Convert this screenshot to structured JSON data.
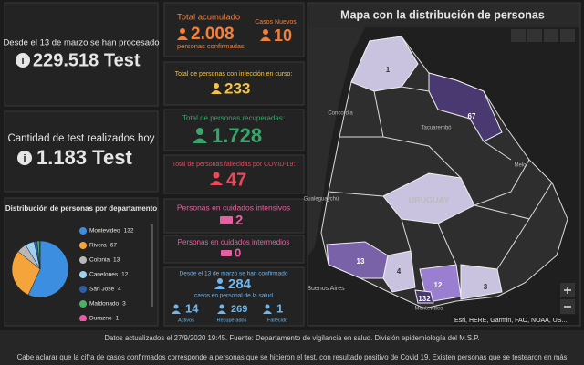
{
  "panels": {
    "processed": {
      "caption": "Desde el 13 de marzo se han procesado",
      "value": "229.518 Test"
    },
    "today": {
      "caption": "Cantidad de test realizados hoy",
      "value": "1.183 Test"
    }
  },
  "pie": {
    "type": "pie",
    "title": "Distribución de personas por departamento",
    "categories": [
      "Montevideo",
      "Rivera",
      "Colonia",
      "Canelones",
      "San José",
      "Maldonado",
      "Durazno"
    ],
    "values": [
      132,
      67,
      13,
      12,
      4,
      3,
      1
    ],
    "colors": [
      "#3b8ee0",
      "#f5a43c",
      "#b8b8b8",
      "#9fd0f0",
      "#2c5fa8",
      "#4caf6a",
      "#e85aa6"
    ]
  },
  "stats": {
    "total": {
      "label": "Total acumulado",
      "value": "2.008",
      "unit": "personas confirmadas"
    },
    "new_cases": {
      "label": "Casos Nuevos",
      "value": "10"
    },
    "active": {
      "label": "Total de personas con infección en curso:",
      "value": "233"
    },
    "recovered": {
      "label": "Total de personas recuperadas:",
      "value": "1.728"
    },
    "deceased": {
      "label": "Total de personas fallecidas por COVID-19:",
      "value": "47"
    },
    "icu": {
      "label": "Personas en cuidados intensivos",
      "value": "2"
    },
    "intermediate": {
      "label": "Personas en cuidados intermedios",
      "value": "0"
    },
    "health": {
      "caption": "Desde el 13 de marzo se han confirmado",
      "value": "284",
      "unit": "casos en personal de la salud",
      "breakdown": [
        {
          "value": "14",
          "label": "Activos"
        },
        {
          "value": "269",
          "label": "Recuperados"
        },
        {
          "value": "1",
          "label": "Fallecido"
        }
      ]
    }
  },
  "map": {
    "title": "Mapa con la distribución de personas",
    "regions": [
      1,
      67,
      13,
      4,
      12,
      3,
      132
    ],
    "places": [
      "Concordia",
      "Tacuarembó",
      "Melo",
      "URUGUAY",
      "Buenos Aires",
      "Montevideo",
      "Gualeguaychú"
    ],
    "attribution": "Esri, HERE, Garmin, FAO, NOAA, US..."
  },
  "footer": {
    "updated": "Datos actualizados el 27/9/2020 19:45. Fuente: Departamento de vigilancia en salud. División epidemiología del M.S.P.",
    "note": "Cabe aclarar que la cifra de casos confirmados corresponde a personas que se hicieron el test, con resultado positivo de Covid 19. Existen personas que se testearon en más"
  }
}
